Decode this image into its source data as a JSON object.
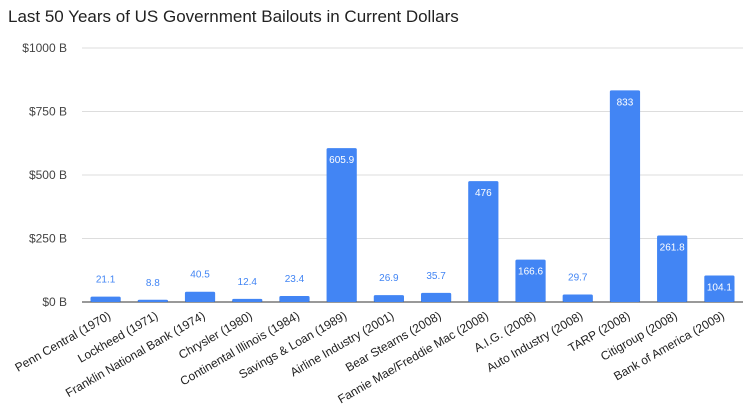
{
  "chart_data": {
    "type": "bar",
    "title": "Last 50 Years of US Government Bailouts in Current Dollars",
    "xlabel": "",
    "ylabel": "",
    "ylim": [
      0,
      1000
    ],
    "yticks": [
      {
        "value": 0,
        "label": "$0 B"
      },
      {
        "value": 250,
        "label": "$250 B"
      },
      {
        "value": 500,
        "label": "$500 B"
      },
      {
        "value": 750,
        "label": "$750 B"
      },
      {
        "value": 1000,
        "label": "$1000 B"
      }
    ],
    "grid": true,
    "legend": "none",
    "bar_color": "#4285F4",
    "categories": [
      "Penn Central (1970)",
      "Lockheed (1971)",
      "Franklin National Bank (1974)",
      "Chrysler (1980)",
      "Continental Illinois (1984)",
      "Savings & Loan (1989)",
      "Airline Industry (2001)",
      "Bear Stearns (2008)",
      "Fannie Mae/Freddie Mac (2008)",
      "A.I.G. (2008)",
      "Auto Industry (2008)",
      "TARP (2008)",
      "Citigroup (2008)",
      "Bank of America (2009)"
    ],
    "values": [
      21.1,
      8.8,
      40.5,
      12.4,
      23.4,
      605.9,
      26.9,
      35.7,
      476,
      166.6,
      29.7,
      833,
      261.8,
      104.1
    ],
    "value_labels": [
      "21.1",
      "8.8",
      "40.5",
      "12.4",
      "23.4",
      "605.9",
      "26.9",
      "35.7",
      "476",
      "166.6",
      "29.7",
      "833",
      "261.8",
      "104.1"
    ]
  }
}
